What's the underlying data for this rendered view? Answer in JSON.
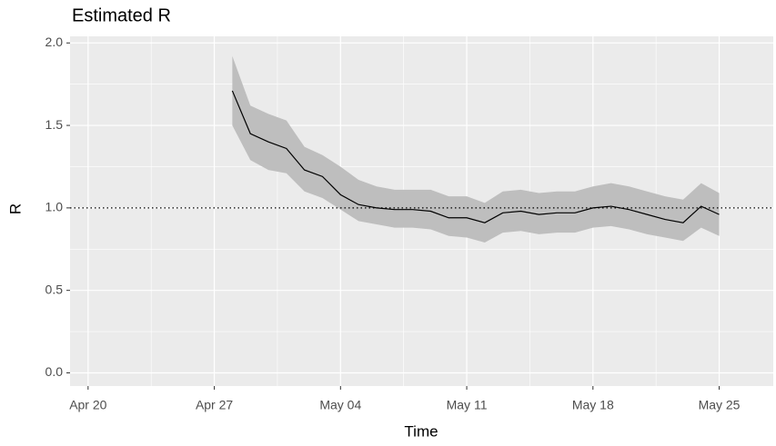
{
  "chart_data": {
    "type": "line",
    "title": "Estimated R",
    "x_label": "Time",
    "y_label": "R",
    "x": [
      "Apr 28",
      "Apr 29",
      "Apr 30",
      "May 01",
      "May 02",
      "May 03",
      "May 04",
      "May 05",
      "May 06",
      "May 07",
      "May 08",
      "May 09",
      "May 10",
      "May 11",
      "May 12",
      "May 13",
      "May 14",
      "May 15",
      "May 16",
      "May 17",
      "May 18",
      "May 19",
      "May 20",
      "May 21",
      "May 22",
      "May 23",
      "May 24",
      "May 25"
    ],
    "series": [
      {
        "color": "#000000",
        "band_color": "#bebebe",
        "values": [
          1.71,
          1.45,
          1.4,
          1.36,
          1.23,
          1.19,
          1.08,
          1.02,
          1.0,
          0.99,
          0.99,
          0.98,
          0.94,
          0.94,
          0.91,
          0.97,
          0.98,
          0.96,
          0.97,
          0.97,
          1.0,
          1.01,
          0.99,
          0.96,
          0.93,
          0.91,
          1.01,
          0.96
        ],
        "upper": [
          1.92,
          1.62,
          1.57,
          1.53,
          1.37,
          1.32,
          1.25,
          1.17,
          1.13,
          1.11,
          1.11,
          1.11,
          1.07,
          1.07,
          1.03,
          1.1,
          1.11,
          1.09,
          1.1,
          1.1,
          1.13,
          1.15,
          1.13,
          1.1,
          1.07,
          1.05,
          1.15,
          1.09
        ],
        "lower": [
          1.5,
          1.29,
          1.23,
          1.21,
          1.1,
          1.06,
          0.99,
          0.92,
          0.9,
          0.88,
          0.88,
          0.87,
          0.83,
          0.82,
          0.79,
          0.85,
          0.86,
          0.84,
          0.85,
          0.85,
          0.88,
          0.89,
          0.87,
          0.84,
          0.82,
          0.8,
          0.88,
          0.83
        ]
      }
    ],
    "reference_line": 1,
    "xlim": [
      "Apr 19",
      "May 28"
    ],
    "xticks": [
      "Apr 20",
      "Apr 27",
      "May 04",
      "May 11",
      "May 18",
      "May 25"
    ],
    "ylim": [
      -0.08,
      2.04
    ],
    "yticks": [
      {
        "value": 0,
        "label": "0.0"
      },
      {
        "value": 0.5,
        "label": "0.5"
      },
      {
        "value": 1,
        "label": "1.0"
      },
      {
        "value": 1.5,
        "label": "1.5"
      },
      {
        "value": 2,
        "label": "2.0"
      }
    ],
    "grid": true
  }
}
